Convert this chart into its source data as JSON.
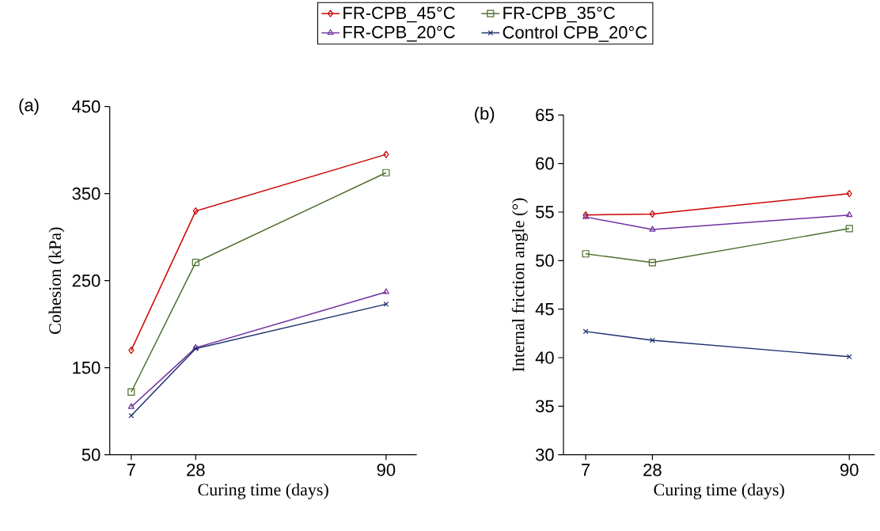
{
  "chart_data": [
    {
      "type": "line",
      "xlabel": "Curing time (days)",
      "ylabel": "Cohesion (kPa)",
      "annotations": [
        "(a)"
      ],
      "x": [
        7,
        28,
        90
      ],
      "xlim": [
        0,
        100
      ],
      "xticks": [
        7,
        28,
        90
      ],
      "ylim": [
        50,
        450
      ],
      "yticks": [
        50,
        150,
        250,
        350,
        450
      ],
      "grid": false,
      "legend": "top",
      "line_style": "solid",
      "series": [
        {
          "name": "FR-CPB_45°C",
          "color": "#cc0000",
          "marker": "diamond",
          "values": [
            170,
            330,
            395
          ]
        },
        {
          "name": "FR-CPB_35°C",
          "color": "#4a6e2a",
          "marker": "square",
          "values": [
            122,
            271,
            374
          ]
        },
        {
          "name": "FR-CPB_20°C",
          "color": "#7030a0",
          "marker": "triangle",
          "values": [
            105,
            173,
            237
          ]
        },
        {
          "name": "Control CPB_20°C",
          "color": "#1a2f6e",
          "marker": "cross",
          "values": [
            95,
            172,
            223
          ]
        }
      ]
    },
    {
      "type": "line",
      "xlabel": "Curing time (days)",
      "ylabel": "Internal friction angle (°)",
      "annotations": [
        "(b)"
      ],
      "x": [
        7,
        28,
        90
      ],
      "xlim": [
        0,
        98
      ],
      "xticks": [
        7,
        28,
        90
      ],
      "ylim": [
        30,
        65
      ],
      "yticks": [
        30,
        35,
        40,
        45,
        50,
        55,
        60,
        65
      ],
      "grid": false,
      "legend": false,
      "line_style": "solid",
      "series": [
        {
          "color": "#cc0000",
          "marker": "diamond",
          "values": [
            54.7,
            54.8,
            56.9
          ]
        },
        {
          "color": "#4a6e2a",
          "marker": "square",
          "values": [
            50.7,
            49.8,
            53.3
          ]
        },
        {
          "color": "#7030a0",
          "marker": "triangle",
          "values": [
            54.5,
            53.2,
            54.7
          ]
        },
        {
          "color": "#1a2f6e",
          "marker": "cross",
          "values": [
            42.7,
            41.8,
            40.1
          ]
        }
      ]
    }
  ]
}
